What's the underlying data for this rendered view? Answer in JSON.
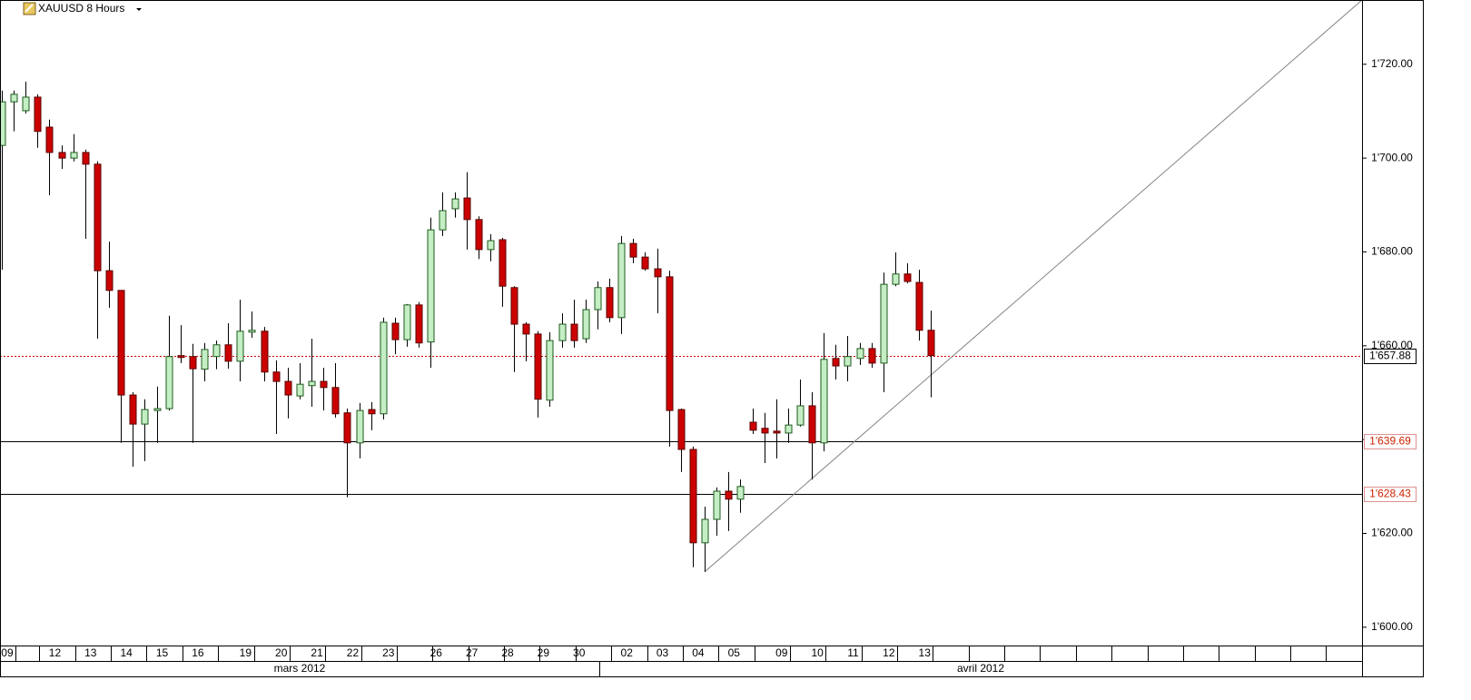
{
  "chart_data": {
    "type": "candlestick",
    "title": "XAUUSD 8 Hours",
    "categories": [
      "09",
      null,
      null,
      null,
      "12",
      null,
      null,
      "13",
      null,
      null,
      "14",
      null,
      null,
      "15",
      null,
      null,
      "16",
      null,
      null,
      null,
      "19",
      null,
      null,
      "20",
      null,
      null,
      "21",
      null,
      null,
      "22",
      null,
      null,
      "23",
      null,
      null,
      null,
      "26",
      null,
      null,
      "27",
      null,
      null,
      "28",
      null,
      null,
      "29",
      null,
      null,
      "30",
      null,
      null,
      null,
      "02",
      null,
      null,
      "03",
      null,
      null,
      "04",
      null,
      null,
      "05",
      null,
      null,
      null,
      "09",
      null,
      null,
      "10",
      null,
      null,
      "11",
      null,
      null,
      "12",
      null,
      null,
      "13",
      null
    ],
    "open": [
      1702.7,
      1712.0,
      1710.1,
      1713.0,
      1706.6,
      1701.2,
      1700.0,
      1701.2,
      1698.7,
      1676.0,
      1671.8,
      1649.5,
      1643.3,
      1646.2,
      1646.6,
      1657.9,
      1657.7,
      1655.0,
      1657.7,
      1660.2,
      1656.7,
      1662.9,
      1663.1,
      1654.4,
      1652.4,
      1649.3,
      1651.5,
      1652.4,
      1651.1,
      1645.7,
      1639.3,
      1646.4,
      1645.5,
      1664.8,
      1661.3,
      1668.7,
      1660.8,
      1684.7,
      1689.2,
      1691.5,
      1686.9,
      1680.5,
      1682.6,
      1672.4,
      1664.6,
      1662.5,
      1648.4,
      1661.1,
      1664.6,
      1661.5,
      1667.7,
      1672.4,
      1666.0,
      1681.8,
      1678.9,
      1676.4,
      1674.7,
      1646.4,
      1637.9,
      1618.0,
      1623.0,
      1629.0,
      1627.3,
      1643.7,
      1642.4,
      1641.8,
      1641.4,
      1643.1,
      1647.2,
      1639.3,
      1657.3,
      1655.7,
      1657.3,
      1659.4,
      1656.3,
      1673.1,
      1675.3,
      1673.5,
      1663.3
    ],
    "high": [
      1714.4,
      1714.4,
      1716.3,
      1713.6,
      1708.2,
      1702.7,
      1705.1,
      1701.8,
      1699.3,
      1682.2,
      1671.8,
      1650.1,
      1648.6,
      1651.3,
      1666.4,
      1664.4,
      1660.4,
      1660.6,
      1661.1,
      1664.8,
      1669.8,
      1667.3,
      1664.0,
      1656.9,
      1655.3,
      1656.3,
      1661.5,
      1655.3,
      1656.3,
      1646.6,
      1647.8,
      1648.0,
      1666.0,
      1666.0,
      1668.9,
      1669.3,
      1687.3,
      1692.7,
      1692.7,
      1697.0,
      1687.6,
      1683.8,
      1683.0,
      1672.7,
      1665.0,
      1663.1,
      1662.9,
      1666.9,
      1669.8,
      1669.8,
      1673.7,
      1674.3,
      1683.4,
      1682.8,
      1679.9,
      1680.7,
      1676.0,
      1646.6,
      1638.5,
      1625.7,
      1629.8,
      1633.1,
      1631.5,
      1646.6,
      1645.7,
      1648.6,
      1646.6,
      1652.8,
      1650.1,
      1662.7,
      1660.2,
      1662.1,
      1660.6,
      1660.6,
      1675.6,
      1679.9,
      1677.6,
      1676.2,
      1667.5
    ],
    "low": [
      1676.2,
      1705.7,
      1709.5,
      1702.2,
      1692.1,
      1697.7,
      1699.3,
      1682.8,
      1661.5,
      1668.1,
      1639.3,
      1634.2,
      1635.4,
      1639.3,
      1646.2,
      1656.3,
      1639.3,
      1652.4,
      1655.0,
      1655.1,
      1652.4,
      1661.7,
      1652.4,
      1641.2,
      1644.5,
      1648.6,
      1647.0,
      1646.2,
      1644.7,
      1627.7,
      1636.0,
      1642.0,
      1644.3,
      1658.2,
      1659.8,
      1659.6,
      1655.3,
      1683.4,
      1687.3,
      1680.5,
      1678.5,
      1678.0,
      1668.3,
      1654.4,
      1656.7,
      1644.7,
      1647.0,
      1659.6,
      1659.6,
      1660.6,
      1663.5,
      1665.0,
      1662.5,
      1677.6,
      1676.0,
      1666.9,
      1638.5,
      1633.1,
      1612.8,
      1611.8,
      1619.5,
      1620.5,
      1624.4,
      1641.2,
      1635.0,
      1636.0,
      1639.3,
      1642.8,
      1631.5,
      1637.5,
      1652.8,
      1652.4,
      1655.9,
      1655.3,
      1650.1,
      1672.7,
      1673.3,
      1661.1,
      1649.0
    ],
    "close": [
      1712.0,
      1713.6,
      1713.0,
      1705.7,
      1701.2,
      1700.0,
      1701.2,
      1698.7,
      1676.0,
      1671.8,
      1649.5,
      1643.3,
      1646.4,
      1646.6,
      1657.7,
      1657.5,
      1655.1,
      1659.2,
      1660.2,
      1656.7,
      1663.1,
      1663.3,
      1654.4,
      1652.4,
      1649.5,
      1651.8,
      1652.4,
      1651.1,
      1645.5,
      1639.3,
      1646.2,
      1645.5,
      1665.0,
      1661.3,
      1668.7,
      1660.6,
      1684.7,
      1688.8,
      1691.3,
      1686.9,
      1680.5,
      1682.4,
      1672.7,
      1664.6,
      1662.5,
      1648.6,
      1661.1,
      1664.6,
      1661.1,
      1667.7,
      1672.4,
      1666.0,
      1681.8,
      1678.9,
      1676.4,
      1674.7,
      1646.2,
      1637.9,
      1618.0,
      1623.0,
      1629.0,
      1627.3,
      1630.0,
      1642.0,
      1641.4,
      1641.4,
      1643.1,
      1647.2,
      1639.3,
      1657.1,
      1655.7,
      1657.7,
      1659.4,
      1656.3,
      1673.1,
      1675.3,
      1673.7,
      1663.3,
      1657.9
    ],
    "up_color": "#c4eec4",
    "down_color": "#cc0000",
    "xlim": [
      -0.15,
      114.18
    ],
    "ylim": [
      1596.1,
      1733.7
    ],
    "yticks": [
      {
        "value": 1600,
        "label": "1'600.00"
      },
      {
        "value": 1620,
        "label": "1'620.00"
      },
      {
        "value": 1640,
        "label": "1'640.00"
      },
      {
        "value": 1660,
        "label": "1'660.00"
      },
      {
        "value": 1680,
        "label": "1'680.00"
      },
      {
        "value": 1700,
        "label": "1'700.00"
      },
      {
        "value": 1720,
        "label": "1'720.00"
      }
    ],
    "months": [
      "mars 2012",
      "avril 2012"
    ],
    "horizontal_lines": [
      {
        "value": 1639.69,
        "label": "1'639.69"
      },
      {
        "value": 1628.43,
        "label": "1'628.43"
      }
    ],
    "horizontal_line_color": "#000000",
    "horizontal_label_color": "#cc2200",
    "last_price": {
      "value": 1657.88,
      "label": "1'657.88",
      "color": "#cc0000"
    },
    "trend_line": {
      "x": [
        59,
        114.18
      ],
      "y": [
        1611.8,
        1733.7
      ],
      "color": "#808080"
    }
  }
}
